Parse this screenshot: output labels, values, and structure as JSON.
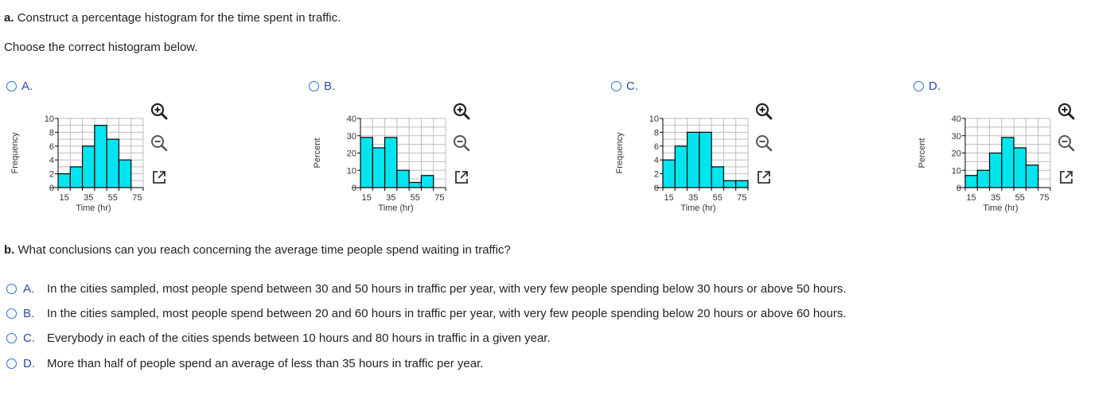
{
  "part_a": {
    "prefix": "a.",
    "prompt": "Construct a percentage histogram for the time spent in traffic.",
    "instruction": "Choose the correct histogram below."
  },
  "options": [
    {
      "letter": "A.",
      "chart_data": {
        "type": "bar",
        "ylabel": "Frequency",
        "xlabel": "Time (hr)",
        "x_ticks": [
          "15",
          "35",
          "55",
          "75"
        ],
        "y_ticks": [
          "0",
          "2",
          "4",
          "6",
          "8",
          "10"
        ],
        "ylim": [
          0,
          10
        ],
        "bin_edges": [
          10,
          20,
          30,
          40,
          50,
          60,
          70,
          80
        ],
        "values": [
          2,
          3,
          6,
          9,
          7,
          4,
          0
        ],
        "grid": true
      }
    },
    {
      "letter": "B.",
      "chart_data": {
        "type": "bar",
        "ylabel": "Percent",
        "xlabel": "Time (hr)",
        "x_ticks": [
          "15",
          "35",
          "55",
          "75"
        ],
        "y_ticks": [
          "0",
          "10",
          "20",
          "30",
          "40"
        ],
        "ylim": [
          0,
          40
        ],
        "bin_edges": [
          10,
          20,
          30,
          40,
          50,
          60,
          70,
          80
        ],
        "values": [
          29,
          23,
          29,
          10,
          3,
          7,
          0
        ],
        "grid": true
      }
    },
    {
      "letter": "C.",
      "chart_data": {
        "type": "bar",
        "ylabel": "Frequency",
        "xlabel": "Time (hr)",
        "x_ticks": [
          "15",
          "35",
          "55",
          "75"
        ],
        "y_ticks": [
          "0",
          "2",
          "4",
          "6",
          "8",
          "10"
        ],
        "ylim": [
          0,
          10
        ],
        "bin_edges": [
          10,
          20,
          30,
          40,
          50,
          60,
          70,
          80
        ],
        "values": [
          4,
          6,
          8,
          8,
          3,
          1,
          1
        ],
        "grid": true
      }
    },
    {
      "letter": "D.",
      "chart_data": {
        "type": "bar",
        "ylabel": "Percent",
        "xlabel": "Time (hr)",
        "x_ticks": [
          "15",
          "35",
          "55",
          "75"
        ],
        "y_ticks": [
          "0",
          "10",
          "20",
          "30",
          "40"
        ],
        "ylim": [
          0,
          40
        ],
        "bin_edges": [
          10,
          20,
          30,
          40,
          50,
          60,
          70,
          80
        ],
        "values": [
          7,
          10,
          20,
          29,
          23,
          13,
          0
        ],
        "grid": true
      }
    }
  ],
  "tools": [
    "zoom-in-icon",
    "zoom-out-icon",
    "open-new-window-icon"
  ],
  "part_b": {
    "prefix": "b.",
    "prompt": "What conclusions can you reach concerning the average time people spend waiting in traffic?",
    "choices": [
      {
        "letter": "A.",
        "text": "In the cities sampled, most people spend between 30 and 50 hours in traffic per year, with very few people spending below 30 hours or above 50 hours."
      },
      {
        "letter": "B.",
        "text": "In the cities sampled, most people spend between 20 and 60 hours in traffic per year, with very few people spending below 20 hours or above 60 hours."
      },
      {
        "letter": "C.",
        "text": "Everybody in each of the cities spends between 10 hours and 80 hours in traffic in a given year."
      },
      {
        "letter": "D.",
        "text": "More than half of people spend an average of less than 35 hours in traffic per year."
      }
    ]
  },
  "colors": {
    "bar_fill": "#00e5ee",
    "bar_stroke": "#000000",
    "grid": "#bdbdbd",
    "accent": "#2a6fdb"
  }
}
